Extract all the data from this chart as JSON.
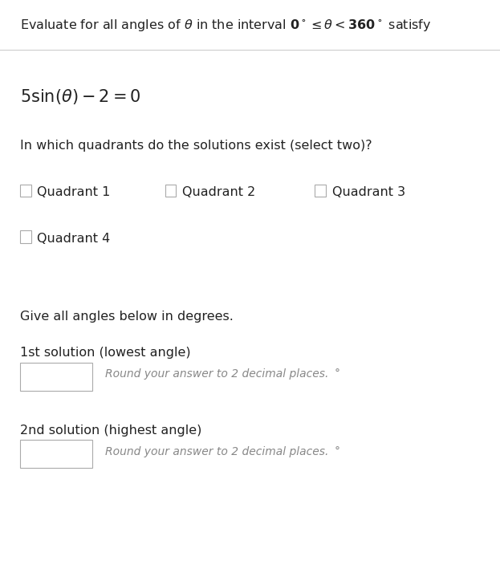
{
  "bg_color": "#ffffff",
  "header_text": "Evaluate for all angles of $\\theta$ in the interval $\\mathbf{0^\\circ} \\leq \\theta < \\mathbf{360^\\circ}$ satisfy",
  "equation": "$5\\sin(\\theta) - 2 = 0$",
  "quadrant_question": "In which quadrants do the solutions exist (select two)?",
  "quadrant_row1": [
    "Quadrant 1",
    "Quadrant 2",
    "Quadrant 3"
  ],
  "quadrant_row2": [
    "Quadrant 4"
  ],
  "section2_title": "Give all angles below in degrees.",
  "sol1_label": "1st solution (lowest angle)",
  "sol1_hint": "Round your answer to 2 decimal places.",
  "sol2_label": "2nd solution (highest angle)",
  "sol2_hint": "Round your answer to 2 decimal places.",
  "degree_symbol": "°",
  "header_fontsize": 11.5,
  "equation_fontsize": 15,
  "body_fontsize": 11.5,
  "hint_fontsize": 10,
  "line_color": "#cccccc",
  "text_color": "#222222",
  "hint_color": "#888888",
  "box_edge_color": "#aaaaaa"
}
